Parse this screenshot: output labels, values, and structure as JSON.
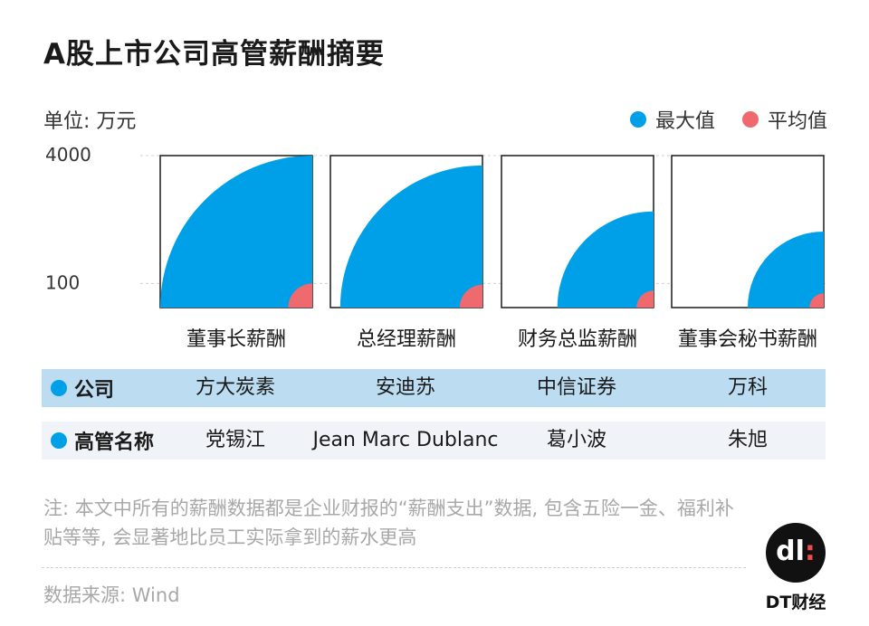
{
  "title": "A股上市公司高管薪酬摘要",
  "unit": "单位: 万元",
  "legend": {
    "max_label": "最大值",
    "avg_label": "平均值",
    "max_color": "#00a0e9",
    "avg_color": "#ee6a6e"
  },
  "chart_data": {
    "type": "other",
    "encoding": "quarter-circle area, sqrt-scaled radius",
    "y_ticks": [
      {
        "value": 4000,
        "label": "4000"
      },
      {
        "value": 100,
        "label": "100"
      }
    ],
    "categories": [
      "董事长薪酬",
      "总经理薪酬",
      "财务总监薪酬",
      "董事会秘书薪酬"
    ],
    "series": [
      {
        "name": "最大值",
        "color": "#00a0e9",
        "values": [
          4000,
          3500,
          1600,
          1000
        ]
      },
      {
        "name": "平均值",
        "color": "#ee6a6e",
        "values": [
          100,
          90,
          50,
          35
        ]
      }
    ]
  },
  "table": {
    "company_header": "公司",
    "exec_header": "高管名称",
    "companies": [
      "方大炭素",
      "安迪苏",
      "中信证券",
      "万科"
    ],
    "executives": [
      "党锡江",
      "Jean Marc Dublanc",
      "葛小波",
      "朱旭"
    ],
    "dot_color": "#00a0e9"
  },
  "note": "注: 本文中所有的薪酬数据都是企业财报的“薪酬支出”数据, 包含五险一金、福利补贴等等, 会显著地比员工实际拿到的薪水更高",
  "source": "数据来源: Wind",
  "brand": {
    "logo_text_white": "dl",
    "logo_text_red": ":",
    "name": "DT财经"
  }
}
